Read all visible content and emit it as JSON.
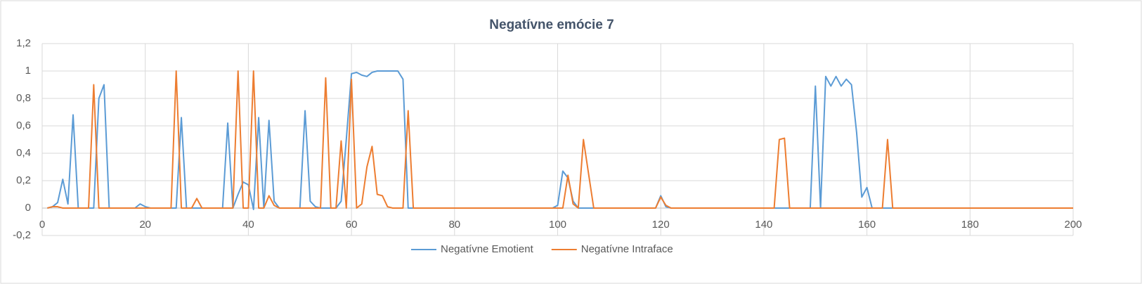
{
  "chart_data": {
    "type": "line",
    "title": "Negatívne emócie 7",
    "x": [
      1,
      2,
      3,
      4,
      5,
      6,
      7,
      8,
      9,
      10,
      11,
      12,
      13,
      14,
      15,
      16,
      17,
      18,
      19,
      20,
      21,
      22,
      23,
      24,
      25,
      26,
      27,
      28,
      29,
      30,
      31,
      32,
      33,
      34,
      35,
      36,
      37,
      38,
      39,
      40,
      41,
      42,
      43,
      44,
      45,
      46,
      47,
      48,
      49,
      50,
      51,
      52,
      53,
      54,
      55,
      56,
      57,
      58,
      59,
      60,
      61,
      62,
      63,
      64,
      65,
      66,
      67,
      68,
      69,
      70,
      71,
      72,
      73,
      74,
      75,
      76,
      77,
      78,
      79,
      80,
      81,
      82,
      83,
      84,
      85,
      86,
      87,
      88,
      89,
      90,
      91,
      92,
      93,
      94,
      95,
      96,
      97,
      98,
      99,
      100,
      101,
      102,
      103,
      104,
      105,
      106,
      107,
      108,
      109,
      110,
      111,
      112,
      113,
      114,
      115,
      116,
      117,
      118,
      119,
      120,
      121,
      122,
      123,
      124,
      125,
      126,
      127,
      128,
      129,
      130,
      131,
      132,
      133,
      134,
      135,
      136,
      137,
      138,
      139,
      140,
      141,
      142,
      143,
      144,
      145,
      146,
      147,
      148,
      149,
      150,
      151,
      152,
      153,
      154,
      155,
      156,
      157,
      158,
      159,
      160,
      161,
      162,
      163,
      164,
      165,
      166,
      167,
      168,
      169,
      170,
      171,
      172,
      173,
      174,
      175,
      176,
      177,
      178,
      179,
      180,
      181,
      182,
      183,
      184,
      185,
      186,
      187,
      188,
      189,
      190,
      191,
      192,
      193,
      194,
      195,
      196,
      197,
      198,
      199,
      200
    ],
    "series": [
      {
        "name": "Negatívne Emotient",
        "color": "#5b9bd5",
        "values": [
          0,
          0.01,
          0.04,
          0.21,
          0.03,
          0.68,
          0,
          0,
          0,
          0,
          0.8,
          0.9,
          0,
          0,
          0,
          0,
          0,
          0,
          0.03,
          0.01,
          0,
          0,
          0,
          0,
          0,
          0,
          0.66,
          0,
          0,
          0,
          0,
          0,
          0,
          0,
          0,
          0.62,
          0,
          0.1,
          0.19,
          0.17,
          -0.01,
          0.66,
          0,
          0.64,
          0.05,
          0,
          0,
          0,
          0,
          0,
          0.71,
          0.05,
          0.01,
          0,
          0,
          0,
          0,
          0.05,
          0.5,
          0.98,
          0.99,
          0.97,
          0.96,
          0.99,
          1,
          1,
          1,
          1,
          1,
          0.94,
          0,
          0,
          0,
          0,
          0,
          0,
          0,
          0,
          0,
          0,
          0,
          0,
          0,
          0,
          0,
          0,
          0,
          0,
          0,
          0,
          0,
          0,
          0,
          0,
          0,
          0,
          0,
          0,
          0,
          0.02,
          0.27,
          0.22,
          0.05,
          0,
          0,
          0,
          0,
          0,
          0,
          0,
          0,
          0,
          0,
          0,
          0,
          0,
          0,
          0,
          0,
          0.09,
          0.01,
          0,
          0,
          0,
          0,
          0,
          0,
          0,
          0,
          0,
          0,
          0,
          0,
          0,
          0,
          0,
          0,
          0,
          0,
          0,
          0,
          0,
          0,
          0,
          0,
          0,
          0,
          0,
          0,
          0.89,
          0,
          0.96,
          0.89,
          0.96,
          0.89,
          0.94,
          0.9,
          0.55,
          0.08,
          0.15,
          0,
          0,
          0,
          0,
          0,
          0,
          0,
          0,
          0,
          0,
          0,
          0,
          0,
          0,
          0,
          0,
          0,
          0,
          0,
          0,
          0,
          0,
          0,
          0,
          0,
          0,
          0,
          0,
          0,
          0,
          0,
          0,
          0,
          0,
          0,
          0,
          0,
          0,
          0,
          0
        ]
      },
      {
        "name": "Negatívne Intraface",
        "color": "#ed7d31",
        "values": [
          0,
          0.01,
          0.01,
          0,
          0,
          0,
          0,
          0,
          0,
          0.9,
          0,
          0,
          0,
          0,
          0,
          0,
          0,
          0,
          0,
          0,
          0,
          0,
          0,
          0,
          0,
          1,
          0,
          0,
          0,
          0.07,
          0,
          0,
          0,
          0,
          0,
          0,
          0,
          1,
          0,
          0,
          1,
          0,
          0,
          0.09,
          0.02,
          0,
          0,
          0,
          0,
          0,
          0,
          0,
          0,
          0,
          0.95,
          0,
          0,
          0.49,
          0,
          0.94,
          0,
          0.03,
          0.3,
          0.45,
          0.1,
          0.09,
          0.01,
          0,
          0,
          0,
          0.71,
          0,
          0,
          0,
          0,
          0,
          0,
          0,
          0,
          0,
          0,
          0,
          0,
          0,
          0,
          0,
          0,
          0,
          0,
          0,
          0,
          0,
          0,
          0,
          0,
          0,
          0,
          0,
          0,
          0,
          0,
          0.24,
          0.03,
          0,
          0.5,
          0.25,
          0,
          0,
          0,
          0,
          0,
          0,
          0,
          0,
          0,
          0,
          0,
          0,
          0,
          0.08,
          0.02,
          0,
          0,
          0,
          0,
          0,
          0,
          0,
          0,
          0,
          0,
          0,
          0,
          0,
          0,
          0,
          0,
          0,
          0,
          0,
          0,
          0,
          0.5,
          0.51,
          0,
          0,
          0,
          0,
          0,
          0,
          0,
          0,
          0,
          0,
          0,
          0,
          0,
          0,
          0,
          0,
          0,
          0,
          0,
          0.5,
          0,
          0,
          0,
          0,
          0,
          0,
          0,
          0,
          0,
          0,
          0,
          0,
          0,
          0,
          0,
          0,
          0,
          0,
          0,
          0,
          0,
          0,
          0,
          0,
          0,
          0,
          0,
          0,
          0,
          0,
          0,
          0,
          0,
          0,
          0,
          0
        ]
      }
    ],
    "xlim": [
      0,
      200
    ],
    "xticks": [
      0,
      20,
      40,
      60,
      80,
      100,
      120,
      140,
      160,
      180,
      200
    ],
    "ylim": [
      -0.2,
      1.2
    ],
    "yticks": [
      {
        "value": -0.2,
        "label": "-0,2"
      },
      0,
      {
        "value": 0.2,
        "label": "0,2"
      },
      {
        "value": 0.4,
        "label": "0,4"
      },
      {
        "value": 0.6,
        "label": "0,6"
      },
      {
        "value": 0.8,
        "label": "0,8"
      },
      1,
      {
        "value": 1.2,
        "label": "1,2"
      }
    ],
    "grid": true,
    "legend": "bottom"
  }
}
